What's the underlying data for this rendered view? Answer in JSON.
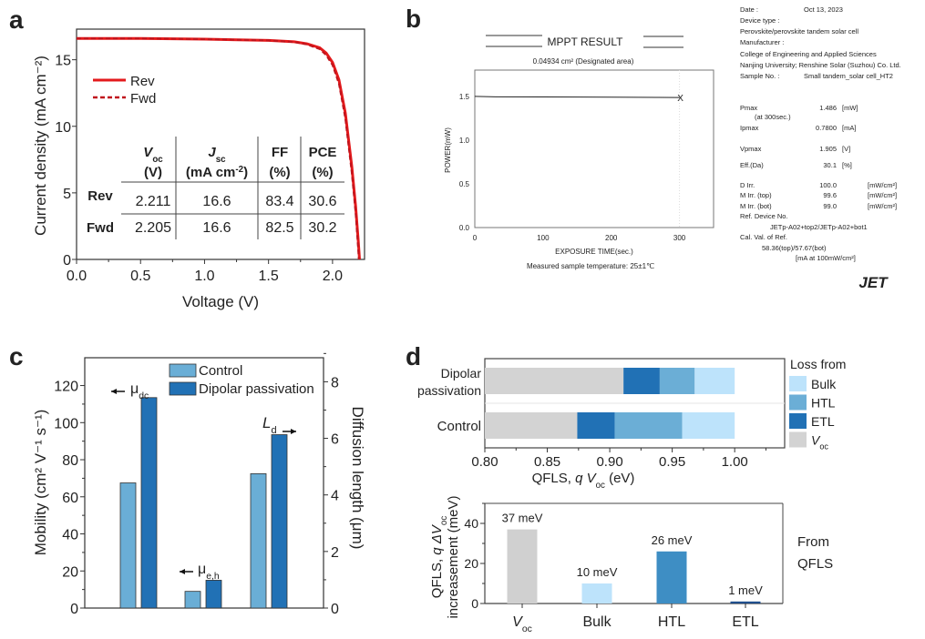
{
  "panel_labels": [
    "a",
    "b",
    "c",
    "d"
  ],
  "chart_data": [
    {
      "panel": "a",
      "type": "line",
      "xlabel": "Voltage (V)",
      "ylabel": "Current density (mA cm⁻²)",
      "xlim": [
        0,
        2.25
      ],
      "ylim": [
        0,
        17.3
      ],
      "xticks": [
        "0.0",
        "0.5",
        "1.0",
        "1.5",
        "2.0"
      ],
      "yticks": [
        "0",
        "5",
        "10",
        "15"
      ],
      "series": [
        {
          "name": "Rev",
          "style": "solid",
          "color": "#e31a1c",
          "x": [
            0,
            0.5,
            1.0,
            1.5,
            1.7,
            1.8,
            1.9,
            1.95,
            2.0,
            2.05,
            2.1,
            2.15,
            2.18,
            2.2,
            2.211
          ],
          "y": [
            16.6,
            16.6,
            16.55,
            16.45,
            16.35,
            16.2,
            15.9,
            15.5,
            14.8,
            13.5,
            11.0,
            7.0,
            4.0,
            1.5,
            0
          ]
        },
        {
          "name": "Fwd",
          "style": "dashed",
          "color": "#c0141c",
          "x": [
            0,
            0.5,
            1.0,
            1.5,
            1.7,
            1.8,
            1.9,
            1.95,
            2.0,
            2.05,
            2.1,
            2.15,
            2.18,
            2.2,
            2.205
          ],
          "y": [
            16.6,
            16.6,
            16.55,
            16.45,
            16.33,
            16.15,
            15.8,
            15.35,
            14.6,
            13.2,
            10.6,
            6.5,
            3.5,
            0.8,
            0
          ]
        }
      ],
      "table": {
        "headers": [
          {
            "sym": "V",
            "sub": "oc",
            "unit": "(V)"
          },
          {
            "sym": "J",
            "sub": "sc",
            "unit_a": "(mA cm",
            "unit_sup": "-2",
            "unit_b": ")"
          },
          {
            "sym": "FF",
            "unit": "(%)"
          },
          {
            "sym": "PCE",
            "unit": "(%)"
          }
        ],
        "rows": [
          {
            "label": "Rev",
            "values": [
              "2.211",
              "16.6",
              "83.4",
              "30.6"
            ]
          },
          {
            "label": "Fwd",
            "values": [
              "2.205",
              "16.6",
              "82.5",
              "30.2"
            ]
          }
        ]
      }
    },
    {
      "panel": "b",
      "type": "line",
      "title": "MPPT RESULT",
      "subtitle": "0.04934 cm² (Designated area)",
      "xlabel": "EXPOSURE TIME(sec.)",
      "ylabel": "POWER(mW)",
      "note": "Measured sample temperature: 25±1℃",
      "xlim": [
        0,
        350
      ],
      "ylim": [
        0,
        1.8
      ],
      "xticks": [
        "0",
        "100",
        "200",
        "300"
      ],
      "yticks": [
        "0.0",
        "0.5",
        "1.0",
        "1.5"
      ],
      "series": [
        {
          "x": [
            0,
            30,
            100,
            200,
            300
          ],
          "y": [
            1.5,
            1.495,
            1.493,
            1.49,
            1.486
          ],
          "color": "#222222"
        }
      ],
      "end_marker": "X",
      "info": [
        {
          "k": "Date :",
          "v": "Oct 13, 2023"
        },
        {
          "k": "Device type :"
        },
        {
          "k": "Perovskite/perovskite tandem solar cell"
        },
        {
          "k": "Manufacturer :"
        },
        {
          "k": "College of Engineering and Applied Sciences"
        },
        {
          "k": "Nanjing University; Renshine Solar (Suzhou) Co. Ltd."
        },
        {
          "k": "Sample No. :",
          "v": "Small tandem_solar cell_HT2"
        },
        {
          "k": "Pmax",
          "v": "1.486",
          "u": "[mW]"
        },
        {
          "k": "(at 300sec.)"
        },
        {
          "k": "Ipmax",
          "v": "0.7800",
          "u": "[mA]"
        },
        {
          "k": "Vpmax",
          "v": "1.905",
          "u": "[V]"
        },
        {
          "k": "Eff.(Da)",
          "v": "30.1",
          "u": "[%]"
        },
        {
          "k": "D Irr.",
          "v": "100.0",
          "u": "[mW/cm²]"
        },
        {
          "k": "M Irr. (top)",
          "v": "99.6",
          "u": "[mW/cm²]"
        },
        {
          "k": "M Irr. (bot)",
          "v": "99.0",
          "u": "[mW/cm²]"
        },
        {
          "k": "Ref. Device No."
        },
        {
          "k": "JETp-A02+top2/JETp-A02+bot1"
        },
        {
          "k": "Cal. Val. of Ref."
        },
        {
          "k": "58.36(top)/57.67(bot)"
        },
        {
          "k": "[mA at 100mW/cm²]"
        }
      ],
      "logo": "JET"
    },
    {
      "panel": "c",
      "type": "bar",
      "ylabel": "Mobility (cm² V⁻¹ s⁻¹)",
      "y2label": "Diffusion length (μm)",
      "ylim": [
        0,
        135
      ],
      "y2lim": [
        0,
        8.85
      ],
      "yticks": [
        "0",
        "20",
        "40",
        "60",
        "80",
        "100",
        "120"
      ],
      "y2ticks": [
        "0",
        "2",
        "4",
        "6",
        "8"
      ],
      "categories": [
        {
          "sym": "μ",
          "sub": "dc",
          "axis": "left",
          "arrow": "left"
        },
        {
          "sym": "μ",
          "sub": "e,h",
          "axis": "left",
          "arrow": "left"
        },
        {
          "sym": "L",
          "sub": "d",
          "axis": "right",
          "arrow": "right"
        }
      ],
      "series": [
        {
          "name": "Control",
          "color": "#6aaed6",
          "values": [
            67.5,
            9,
            4.75
          ]
        },
        {
          "name": "Dipolar passivation",
          "color": "#2171b5",
          "values": [
            113.5,
            15,
            6.13
          ]
        }
      ],
      "legend": "top"
    },
    {
      "panel": "d-top",
      "type": "bar",
      "orientation": "horizontal-stacked",
      "xlabel_a": "QFLS, ",
      "xlabel_q": "q",
      "xlabel_v": " V",
      "xlabel_sub": "oc",
      "xlabel_b": " (eV)",
      "xlim": [
        0.8,
        1.04
      ],
      "xticks": [
        "0.80",
        "0.85",
        "0.90",
        "0.95",
        "1.00"
      ],
      "categories": [
        {
          "lines": [
            "Dipolar",
            "passivation"
          ],
          "segment_ends": {
            "Voc": 0.911,
            "ETL": 0.94,
            "HTL": 0.968,
            "Bulk": 1.0
          }
        },
        {
          "lines": [
            "Control"
          ],
          "segment_ends": {
            "Voc": 0.874,
            "ETL": 0.904,
            "HTL": 0.958,
            "Bulk": 1.0
          }
        }
      ],
      "legend_title": "Loss from",
      "legend": [
        {
          "label": "Bulk",
          "color": "#bde3fb"
        },
        {
          "label": "HTL",
          "color": "#6baed6"
        },
        {
          "label": "ETL",
          "color": "#2171b5"
        },
        {
          "label": "V",
          "sub": "oc",
          "color": "#d3d3d3"
        }
      ]
    },
    {
      "panel": "d-bottom",
      "type": "bar",
      "ylabel_line1_a": "QFLS, ",
      "ylabel_line1_q": "q ΔV",
      "ylabel_line1_sub": "oc",
      "ylabel_line2": "increasement (meV)",
      "ylim": [
        0,
        50
      ],
      "yticks": [
        "0",
        "20",
        "40"
      ],
      "categories": [
        {
          "label": "V",
          "sub": "oc"
        },
        {
          "label": "Bulk"
        },
        {
          "label": "HTL"
        },
        {
          "label": "ETL"
        }
      ],
      "values": [
        37,
        10,
        26,
        1
      ],
      "data_labels": [
        "37 meV",
        "10 meV",
        "26 meV",
        "1 meV"
      ],
      "colors": [
        "#d0d0d0",
        "#bde3fb",
        "#3e8ec4",
        "#1f4e8c"
      ],
      "side_text": [
        "From",
        "QFLS"
      ]
    }
  ]
}
